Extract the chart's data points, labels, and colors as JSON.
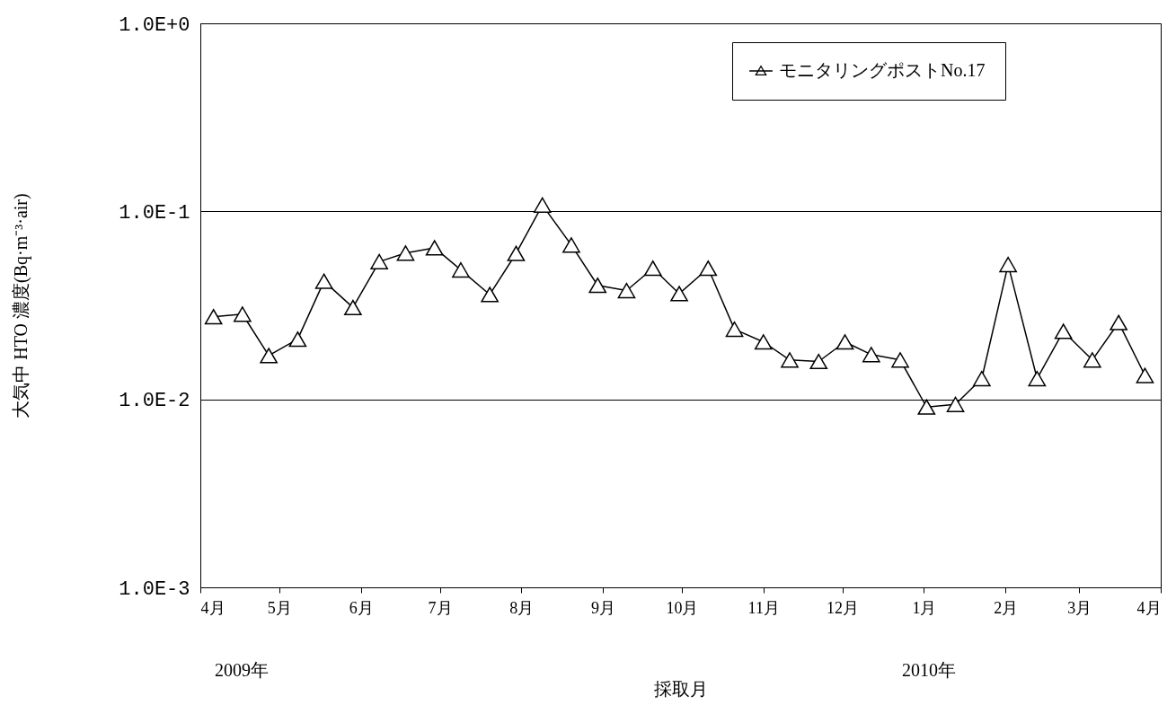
{
  "chart_data": {
    "type": "line",
    "xlabel": "採取月",
    "ylabel": "大気中 HTO 濃度(Bq·m⁻³·air)",
    "x": [
      "2009-04-06",
      "2009-04-17",
      "2009-04-27",
      "2009-05-08",
      "2009-05-18",
      "2009-05-29",
      "2009-06-08",
      "2009-06-18",
      "2009-06-29",
      "2009-07-09",
      "2009-07-20",
      "2009-07-30",
      "2009-08-09",
      "2009-08-20",
      "2009-08-30",
      "2009-09-10",
      "2009-09-20",
      "2009-09-30",
      "2009-10-11",
      "2009-10-21",
      "2009-11-01",
      "2009-11-11",
      "2009-11-22",
      "2009-12-02",
      "2009-12-12",
      "2009-12-23",
      "2010-01-02",
      "2010-01-13",
      "2010-01-23",
      "2010-02-02",
      "2010-02-13",
      "2010-02-23",
      "2010-03-06",
      "2010-03-16",
      "2010-03-26"
    ],
    "series": [
      {
        "name": "モニタリングポストNo.17",
        "color": "#000000",
        "values": [
          0.0275,
          0.0284,
          0.0171,
          0.0209,
          0.0425,
          0.0308,
          0.054,
          0.06,
          0.064,
          0.0488,
          0.0361,
          0.0597,
          0.108,
          0.0662,
          0.0404,
          0.0379,
          0.0498,
          0.0365,
          0.0498,
          0.0236,
          0.0202,
          0.0162,
          0.0159,
          0.0202,
          0.0173,
          0.0162,
          0.0091,
          0.0094,
          0.0129,
          0.0521,
          0.0129,
          0.023,
          0.0162,
          0.0256,
          0.0134
        ]
      }
    ],
    "log": "y",
    "ylim": [
      0.001,
      1
    ],
    "yticks": [
      {
        "value": 0.001,
        "label": "1.0E-3"
      },
      {
        "value": 0.01,
        "label": "1.0E-2"
      },
      {
        "value": 0.1,
        "label": "1.0E-1"
      },
      {
        "value": 1,
        "label": "1.0E+0"
      }
    ],
    "xlim": [
      "2009-04-01",
      "2010-04-01"
    ],
    "xticks": [
      {
        "value": "2009-04-01",
        "label": "4月"
      },
      {
        "value": "2009-05-01",
        "label": "5月"
      },
      {
        "value": "2009-06-01",
        "label": "6月"
      },
      {
        "value": "2009-07-01",
        "label": "7月"
      },
      {
        "value": "2009-08-01",
        "label": "8月"
      },
      {
        "value": "2009-09-01",
        "label": "9月"
      },
      {
        "value": "2009-10-01",
        "label": "10月"
      },
      {
        "value": "2009-11-01",
        "label": "11月"
      },
      {
        "value": "2009-12-01",
        "label": "12月"
      },
      {
        "value": "2010-01-01",
        "label": "1月"
      },
      {
        "value": "2010-02-01",
        "label": "2月"
      },
      {
        "value": "2010-03-01",
        "label": "3月"
      },
      {
        "value": "2010-04-01",
        "label": "4月"
      }
    ],
    "annotations": [
      "2009年",
      "2010年"
    ],
    "grid": "y",
    "legend": "top right",
    "marker": "triangle",
    "line_style": "solid"
  }
}
